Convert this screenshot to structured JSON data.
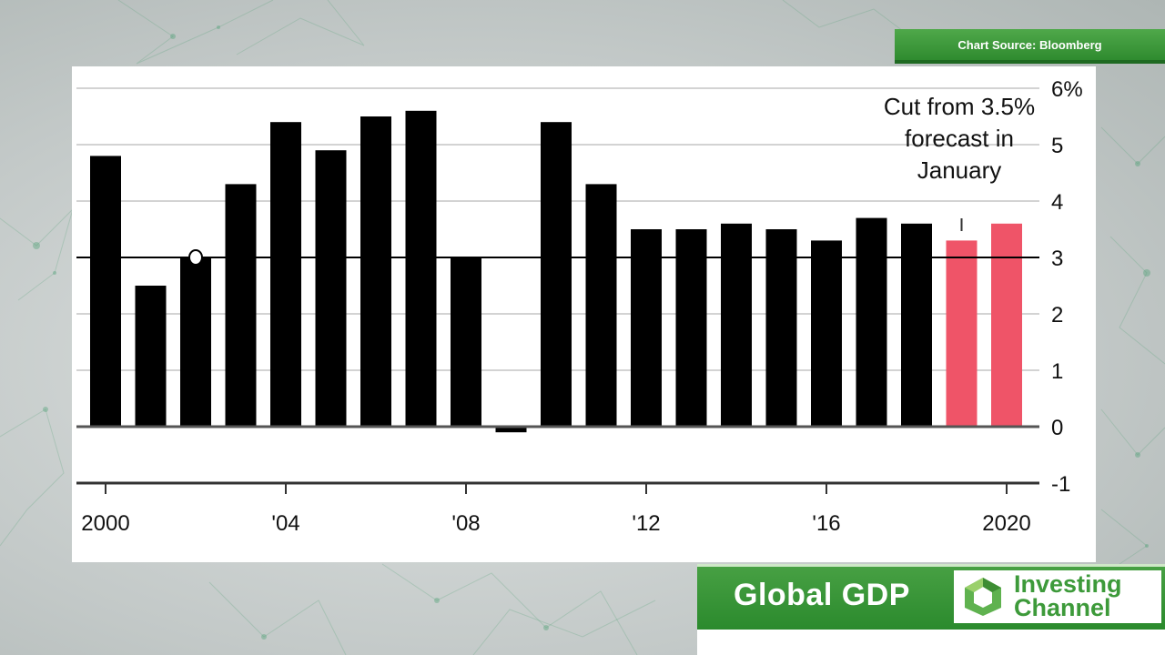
{
  "source_badge": "Chart Source: Bloomberg",
  "title_bar": {
    "title": "Global GDP"
  },
  "logo": {
    "line1": "Investing",
    "line2": "Channel"
  },
  "colors": {
    "bar": "#000000",
    "forecast_bar": "#ef5468",
    "brand_green": "#3d9a3a",
    "grid": "#d3d3d3"
  },
  "chart_data": {
    "type": "bar",
    "title": "",
    "xlabel": "",
    "ylabel": "",
    "ylim": [
      -1,
      6
    ],
    "y_ticks": [
      {
        "value": 6,
        "label": "6%"
      },
      {
        "value": 5,
        "label": "5"
      },
      {
        "value": 4,
        "label": "4"
      },
      {
        "value": 3,
        "label": "3"
      },
      {
        "value": 2,
        "label": "2"
      },
      {
        "value": 1,
        "label": "1"
      },
      {
        "value": 0,
        "label": "0"
      },
      {
        "value": -1,
        "label": "-1"
      }
    ],
    "x_ticks": [
      {
        "year": 2000,
        "label": "2000"
      },
      {
        "year": 2004,
        "label": "'04"
      },
      {
        "year": 2008,
        "label": "'08"
      },
      {
        "year": 2012,
        "label": "'12"
      },
      {
        "year": 2016,
        "label": "'16"
      },
      {
        "year": 2020,
        "label": "2020"
      }
    ],
    "reference_line": 3,
    "grid": true,
    "bars": [
      {
        "year": 2000,
        "value": 4.8,
        "forecast": false
      },
      {
        "year": 2001,
        "value": 2.5,
        "forecast": false
      },
      {
        "year": 2002,
        "value": 3.0,
        "forecast": false
      },
      {
        "year": 2003,
        "value": 4.3,
        "forecast": false
      },
      {
        "year": 2004,
        "value": 5.4,
        "forecast": false
      },
      {
        "year": 2005,
        "value": 4.9,
        "forecast": false
      },
      {
        "year": 2006,
        "value": 5.5,
        "forecast": false
      },
      {
        "year": 2007,
        "value": 5.6,
        "forecast": false
      },
      {
        "year": 2008,
        "value": 3.0,
        "forecast": false
      },
      {
        "year": 2009,
        "value": -0.1,
        "forecast": false
      },
      {
        "year": 2010,
        "value": 5.4,
        "forecast": false
      },
      {
        "year": 2011,
        "value": 4.3,
        "forecast": false
      },
      {
        "year": 2012,
        "value": 3.5,
        "forecast": false
      },
      {
        "year": 2013,
        "value": 3.5,
        "forecast": false
      },
      {
        "year": 2014,
        "value": 3.6,
        "forecast": false
      },
      {
        "year": 2015,
        "value": 3.5,
        "forecast": false
      },
      {
        "year": 2016,
        "value": 3.3,
        "forecast": false
      },
      {
        "year": 2017,
        "value": 3.7,
        "forecast": false
      },
      {
        "year": 2018,
        "value": 3.6,
        "forecast": false
      },
      {
        "year": 2019,
        "value": 3.3,
        "forecast": true
      },
      {
        "year": 2020,
        "value": 3.6,
        "forecast": true
      }
    ],
    "annotation": {
      "lines": [
        "Cut from 3.5%",
        "forecast in",
        "January"
      ],
      "year": 2019,
      "value": 3.5
    },
    "marker": {
      "year": 2002,
      "value": 3.0
    }
  }
}
